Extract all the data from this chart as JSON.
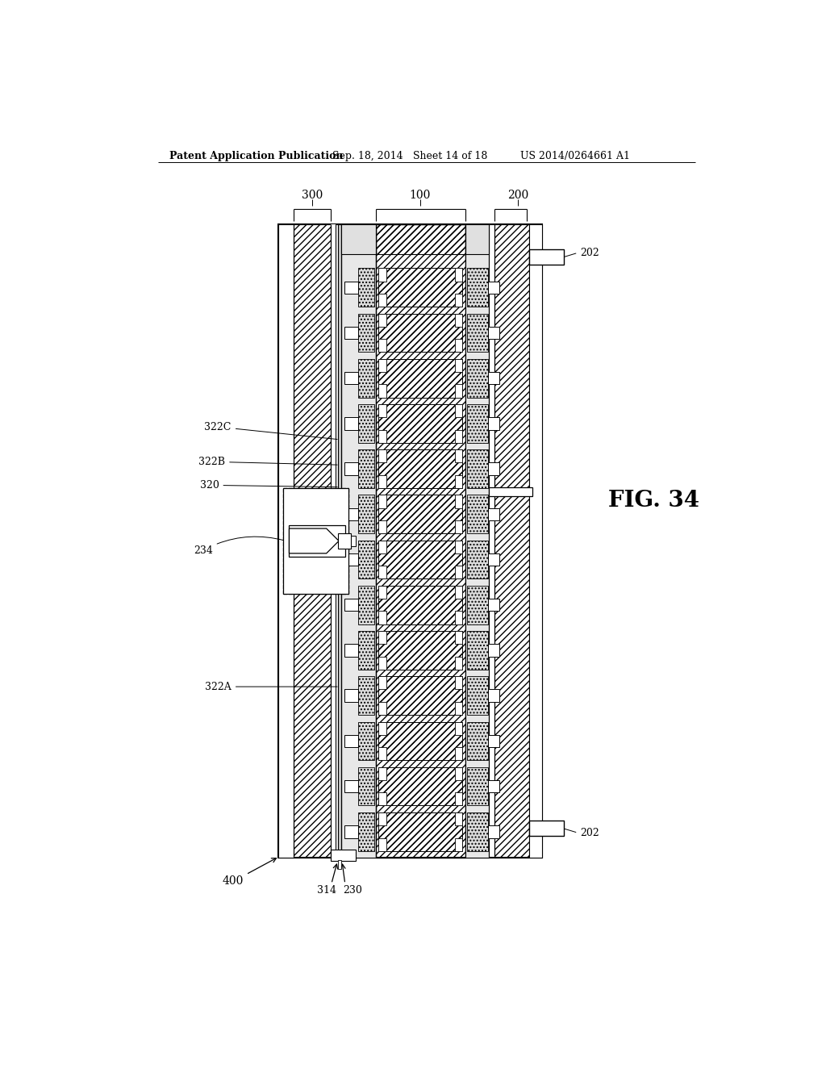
{
  "bg_color": "#ffffff",
  "header_text": "Patent Application Publication",
  "header_date": "Sep. 18, 2014",
  "header_sheet": "Sheet 14 of 18",
  "header_patent": "US 2014/0264661 A1",
  "fig_label": "FIG. 34",
  "line_color": "#000000"
}
